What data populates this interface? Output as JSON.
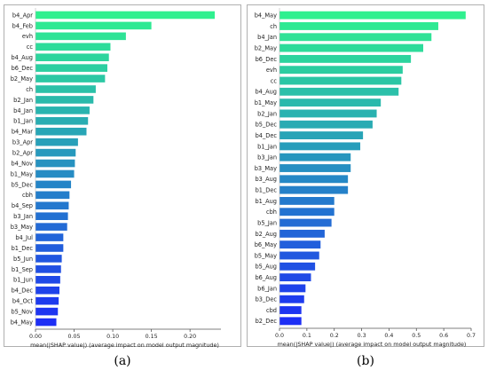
{
  "panels": [
    {
      "label": "(a)",
      "chart_data": {
        "type": "bar",
        "orientation": "horizontal",
        "categories": [
          "b4_Apr",
          "b4_Feb",
          "evh",
          "cc",
          "b4_Aug",
          "b6_Dec",
          "b2_May",
          "ch",
          "b2_Jan",
          "b4_Jan",
          "b1_Jan",
          "b4_Mar",
          "b3_Apr",
          "b2_Apr",
          "b4_Nov",
          "b1_May",
          "b5_Dec",
          "cbh",
          "b4_Sep",
          "b3_Jan",
          "b3_May",
          "b4_Jul",
          "b1_Dec",
          "b5_Jun",
          "b1_Sep",
          "b1_Jun",
          "b4_Dec",
          "b4_Oct",
          "b5_Nov",
          "b4_May"
        ],
        "values": [
          0.232,
          0.15,
          0.117,
          0.097,
          0.095,
          0.093,
          0.09,
          0.078,
          0.075,
          0.07,
          0.068,
          0.066,
          0.055,
          0.052,
          0.051,
          0.05,
          0.046,
          0.044,
          0.043,
          0.042,
          0.041,
          0.036,
          0.036,
          0.034,
          0.033,
          0.032,
          0.031,
          0.03,
          0.029,
          0.027
        ],
        "xticks": [
          0.0,
          0.05,
          0.1,
          0.15,
          0.2
        ],
        "xtick_labels": [
          "0.00",
          "0.05",
          "0.10",
          "0.15",
          "0.20"
        ],
        "xlim": [
          0,
          0.24
        ],
        "xlabel": "mean(|SHAP value|) (average impact on model output magnitude)",
        "colormap": [
          "#2ff08f",
          "#1d2ef5"
        ]
      }
    },
    {
      "label": "(b)",
      "chart_data": {
        "type": "bar",
        "orientation": "horizontal",
        "categories": [
          "b4_May",
          "ch",
          "b4_Jan",
          "b2_May",
          "b6_Dec",
          "evh",
          "cc",
          "b4_Aug",
          "b1_May",
          "b2_Jan",
          "b5_Dec",
          "b4_Dec",
          "b1_Jan",
          "b3_Jan",
          "b3_May",
          "b3_Aug",
          "b1_Dec",
          "b1_Aug",
          "cbh",
          "b5_Jan",
          "b2_Aug",
          "b6_May",
          "b5_May",
          "b5_Aug",
          "b6_Aug",
          "b6_Jan",
          "b3_Dec",
          "cbd",
          "b2_Dec"
        ],
        "values": [
          0.68,
          0.58,
          0.555,
          0.525,
          0.48,
          0.45,
          0.445,
          0.435,
          0.37,
          0.355,
          0.34,
          0.305,
          0.295,
          0.26,
          0.26,
          0.25,
          0.25,
          0.2,
          0.2,
          0.19,
          0.165,
          0.15,
          0.145,
          0.13,
          0.115,
          0.095,
          0.09,
          0.08,
          0.08
        ],
        "xticks": [
          0.0,
          0.1,
          0.2,
          0.3,
          0.4,
          0.5,
          0.6,
          0.7
        ],
        "xtick_labels": [
          "0.0",
          "0.1",
          "0.2",
          "0.3",
          "0.4",
          "0.5",
          "0.6",
          "0.7"
        ],
        "xlim": [
          0,
          0.7
        ],
        "xlabel": "mean(|SHAP value|) (average impact on model output magnitude)",
        "colormap": [
          "#2ff08f",
          "#1d2ef5"
        ]
      }
    }
  ]
}
